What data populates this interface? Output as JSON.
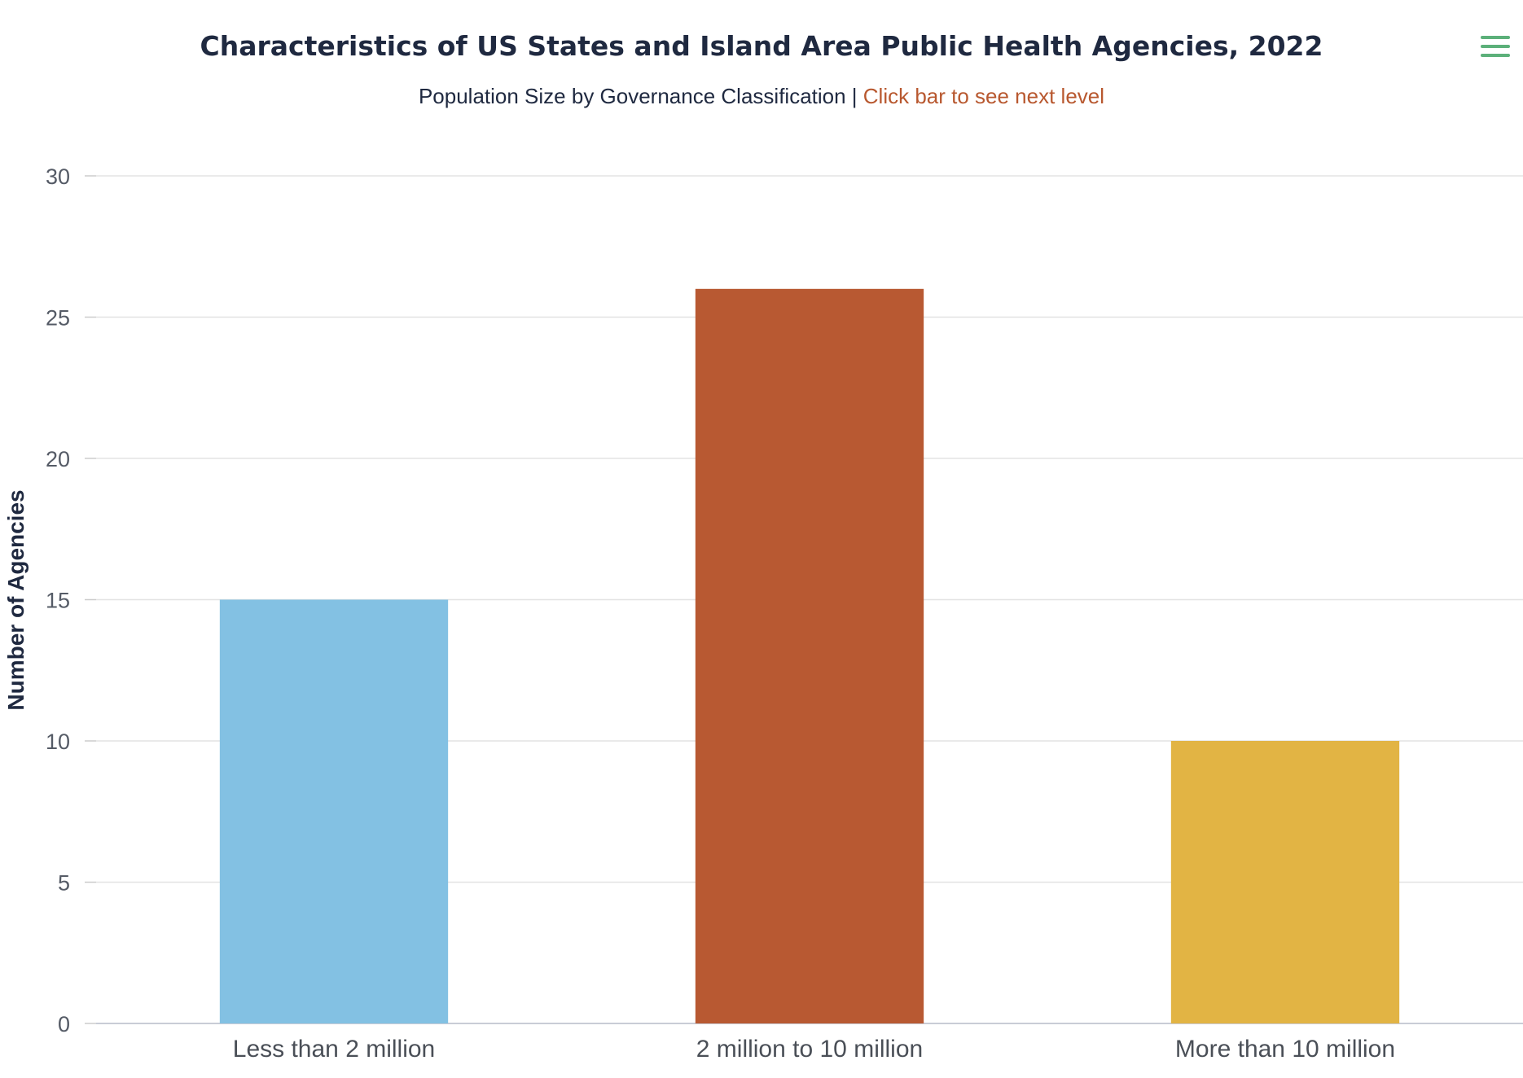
{
  "chart_data": {
    "type": "bar",
    "title": "Characteristics of US States and Island Area Public Health Agencies, 2022",
    "subtitle": "Population Size by Governance Classification | ",
    "subtitle_link": "Click bar to see next level",
    "categories": [
      "Less than 2 million",
      "2 million to 10 million",
      "More than 10 million"
    ],
    "values": [
      15,
      26,
      10
    ],
    "colors": [
      "#83c1e3",
      "#b85932",
      "#e2b444"
    ],
    "xlabel": "",
    "ylabel": "Number of Agencies",
    "ylim": [
      0,
      30
    ],
    "yticks": [
      0,
      5,
      10,
      15,
      20,
      25,
      30
    ],
    "grid": true,
    "legend": "none"
  },
  "menu": {
    "icon": "hamburger-menu-icon",
    "color": "#5cb07a"
  }
}
